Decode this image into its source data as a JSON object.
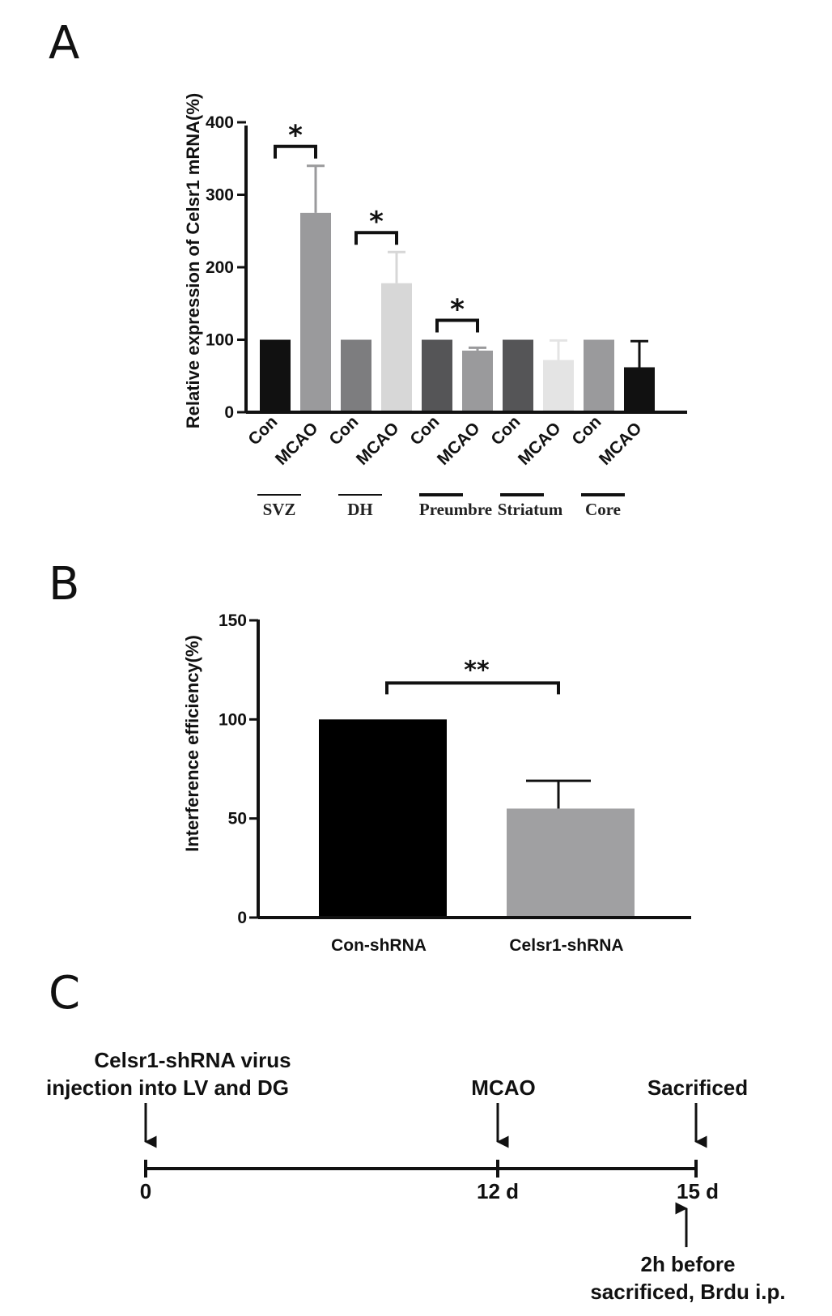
{
  "panels": {
    "a": "A",
    "b": "B",
    "c": "C"
  },
  "chart_data": [
    {
      "type": "bar",
      "panel": "A",
      "ylabel": "Relative expression of Celsr1 mRNA(%)",
      "ylim": [
        0,
        400
      ],
      "yticks": [
        0,
        100,
        200,
        300,
        400
      ],
      "categories": [
        "Con",
        "MCAO",
        "Con",
        "MCAO",
        "Con",
        "MCAO",
        "Con",
        "MCAO",
        "Con",
        "MCAO"
      ],
      "groups": [
        "SVZ",
        "DH",
        "Preumbre",
        "Striatum",
        "Core"
      ],
      "values": [
        100,
        275,
        100,
        178,
        100,
        85,
        100,
        72,
        100,
        62
      ],
      "errors": [
        0,
        65,
        0,
        43,
        0,
        4,
        0,
        27,
        0,
        36
      ],
      "colors": [
        "#111111",
        "#9a9a9c",
        "#7d7d7f",
        "#d7d7d7",
        "#555557",
        "#9a9a9c",
        "#555557",
        "#e4e4e4",
        "#9a9a9c",
        "#111111"
      ],
      "significance": [
        {
          "pair": [
            0,
            1
          ],
          "label": "*"
        },
        {
          "pair": [
            2,
            3
          ],
          "label": "*"
        },
        {
          "pair": [
            4,
            5
          ],
          "label": "*"
        }
      ],
      "grid": false
    },
    {
      "type": "bar",
      "panel": "B",
      "ylabel": "Interference efficiency(%)",
      "ylim": [
        0,
        150
      ],
      "yticks": [
        0,
        50,
        100,
        150
      ],
      "categories": [
        "Con-shRNA",
        "Celsr1-shRNA"
      ],
      "values": [
        100,
        55
      ],
      "errors": [
        0,
        14
      ],
      "colors": [
        "#000000",
        "#a0a0a2"
      ],
      "significance": [
        {
          "pair": [
            0,
            1
          ],
          "label": "**"
        }
      ],
      "grid": false
    }
  ],
  "timeline": {
    "events_above": [
      {
        "lines": [
          "Celsr1-shRNA virus",
          "injection into LV and DG"
        ]
      },
      {
        "lines": [
          "MCAO"
        ]
      },
      {
        "lines": [
          "Sacrificed"
        ]
      }
    ],
    "ticks": [
      "0",
      "12 d",
      "15 d"
    ],
    "event_below": {
      "lines": [
        "2h before",
        "sacrificed, Brdu i.p."
      ]
    }
  }
}
